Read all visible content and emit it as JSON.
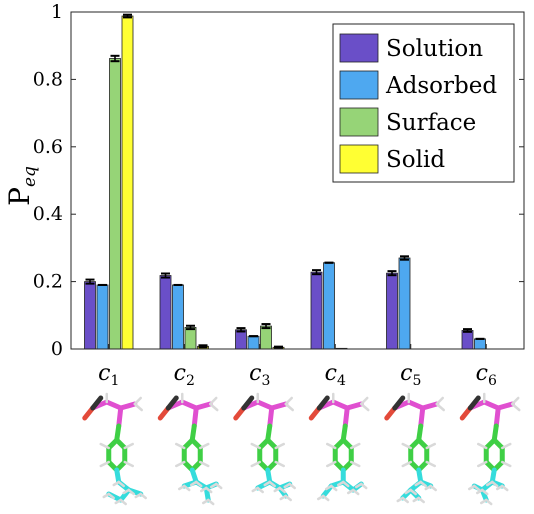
{
  "chart_data": {
    "type": "bar",
    "categories": [
      {
        "base": "c",
        "sub": "1"
      },
      {
        "base": "c",
        "sub": "2"
      },
      {
        "base": "c",
        "sub": "3"
      },
      {
        "base": "c",
        "sub": "4"
      },
      {
        "base": "c",
        "sub": "5"
      },
      {
        "base": "c",
        "sub": "6"
      }
    ],
    "ylabel": {
      "base": "P",
      "sub": "eq"
    },
    "ylim": [
      0,
      1
    ],
    "yticks": [
      "0",
      "0.2",
      "0.4",
      "0.6",
      "0.8",
      "1"
    ],
    "grid": false,
    "legend_position": "top-right",
    "series": [
      {
        "name": "Solution",
        "color": "#6a4fc8",
        "values": [
          0.2,
          0.218,
          0.057,
          0.228,
          0.225,
          0.055
        ],
        "error": [
          0.006,
          0.006,
          0.005,
          0.006,
          0.006,
          0.004
        ]
      },
      {
        "name": "Adsorbed",
        "color": "#4ea8f0",
        "values": [
          0.19,
          0.19,
          0.038,
          0.256,
          0.27,
          0.03
        ],
        "error": [
          0.0,
          0.0,
          0.0,
          0.0,
          0.005,
          0.0
        ]
      },
      {
        "name": "Surface",
        "color": "#96d477",
        "values": [
          0.862,
          0.064,
          0.068,
          0.002,
          0.0,
          0.0
        ],
        "error": [
          0.008,
          0.005,
          0.006,
          0.0,
          0.0,
          0.0
        ]
      },
      {
        "name": "Solid",
        "color": "#ffff33",
        "values": [
          0.988,
          0.008,
          0.005,
          0.0,
          0.0,
          0.0
        ],
        "error": [
          0.004,
          0.003,
          0.002,
          0.0,
          0.0,
          0.0
        ]
      }
    ]
  },
  "molecules": [
    {
      "icon": "molecule-c1-icon"
    },
    {
      "icon": "molecule-c2-icon"
    },
    {
      "icon": "molecule-c3-icon"
    },
    {
      "icon": "molecule-c4-icon"
    },
    {
      "icon": "molecule-c5-icon"
    },
    {
      "icon": "molecule-c6-icon"
    }
  ]
}
